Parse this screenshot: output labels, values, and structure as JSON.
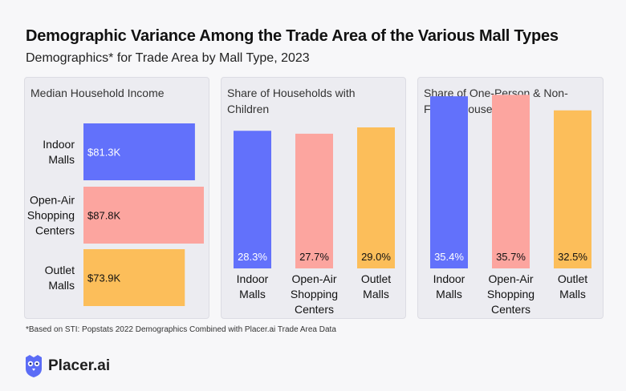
{
  "header": {
    "title": "Demographic Variance Among the Trade Area of the Various Mall Types",
    "subtitle": "Demographics* for Trade Area by Mall Type, 2023"
  },
  "colors": {
    "indoor": "#6271fb",
    "open_air": "#fca59f",
    "outlet": "#fcbe5a"
  },
  "chart_data": [
    {
      "type": "bar",
      "orientation": "horizontal",
      "title": "Median Household Income",
      "categories": [
        "Indoor Malls",
        "Open-Air Shopping Centers",
        "Outlet Malls"
      ],
      "category_lines": [
        [
          "Indoor",
          "Malls"
        ],
        [
          "Open-Air",
          "Shopping",
          "Centers"
        ],
        [
          "Outlet",
          "Malls"
        ]
      ],
      "values": [
        81.3,
        87.8,
        73.9
      ],
      "value_labels": [
        "$81.3K",
        "$87.8K",
        "$73.9K"
      ],
      "unit": "$K"
    },
    {
      "type": "bar",
      "orientation": "vertical",
      "title": "Share of Households with Children",
      "categories": [
        "Indoor Malls",
        "Open-Air Shopping Centers",
        "Outlet Malls"
      ],
      "category_lines": [
        [
          "Indoor",
          "Malls"
        ],
        [
          "Open-Air",
          "Shopping",
          "Centers"
        ],
        [
          "Outlet",
          "Malls"
        ]
      ],
      "values": [
        28.3,
        27.7,
        29.0
      ],
      "value_labels": [
        "28.3%",
        "27.7%",
        "29.0%"
      ],
      "unit": "%"
    },
    {
      "type": "bar",
      "orientation": "vertical",
      "title": "Share of One-Person & Non-Family Households",
      "categories": [
        "Indoor Malls",
        "Open-Air Shopping Centers",
        "Outlet Malls"
      ],
      "category_lines": [
        [
          "Indoor",
          "Malls"
        ],
        [
          "Open-Air",
          "Shopping",
          "Centers"
        ],
        [
          "Outlet",
          "Malls"
        ]
      ],
      "values": [
        35.4,
        35.7,
        32.5
      ],
      "value_labels": [
        "35.4%",
        "35.7%",
        "32.5%"
      ],
      "unit": "%"
    }
  ],
  "footnote": "*Based on STI: Popstats 2022 Demographics Combined with Placer.ai Trade Area Data",
  "logo": {
    "text": "Placer.ai",
    "icon": "placer-owl-icon"
  }
}
